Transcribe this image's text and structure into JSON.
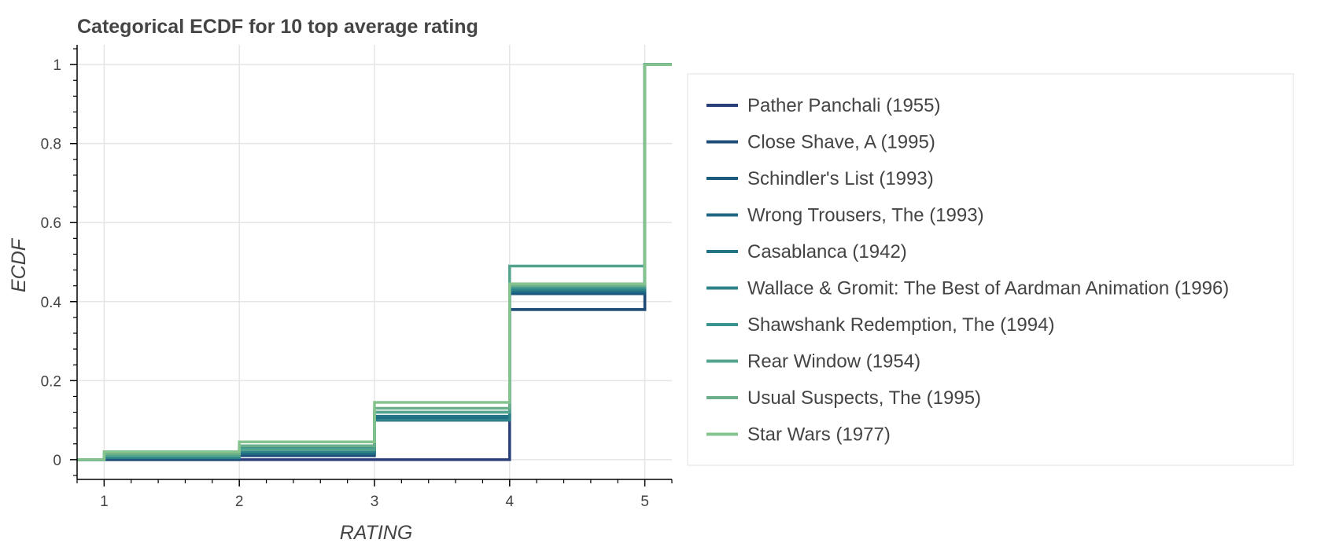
{
  "chart_data": {
    "type": "line",
    "step": "post",
    "title": "Categorical ECDF for 10 top average rating",
    "xlabel": "RATING",
    "ylabel": "ECDF",
    "xlim": [
      0.8,
      5.2
    ],
    "ylim": [
      -0.05,
      1.05
    ],
    "x_ticks": [
      1,
      2,
      3,
      4,
      5
    ],
    "y_ticks": [
      0,
      0.2,
      0.4,
      0.6,
      0.8,
      1
    ],
    "y_tick_labels": [
      "0",
      "0.2",
      "0.4",
      "0.6",
      "0.8",
      "1"
    ],
    "grid": true,
    "legend_position": "right",
    "x": [
      1,
      2,
      3,
      4,
      5
    ],
    "series": [
      {
        "name": "Pather Panchali (1955)",
        "color": "#2a3f7a",
        "values": [
          0.0,
          0.0,
          0.0,
          0.38,
          1.0
        ]
      },
      {
        "name": "Close Shave, A (1995)",
        "color": "#1f4d78",
        "values": [
          0.0,
          0.01,
          0.1,
          0.38,
          1.0
        ]
      },
      {
        "name": "Schindler's List (1993)",
        "color": "#1c5a7e",
        "values": [
          0.005,
          0.02,
          0.1,
          0.42,
          1.0
        ]
      },
      {
        "name": "Wrong Trousers, The (1993)",
        "color": "#1e6886",
        "values": [
          0.005,
          0.015,
          0.105,
          0.425,
          1.0
        ]
      },
      {
        "name": "Casablanca (1942)",
        "color": "#227484",
        "values": [
          0.01,
          0.025,
          0.11,
          0.43,
          1.0
        ]
      },
      {
        "name": "Wallace & Gromit: The Best of Aardman Animation (1996)",
        "color": "#2d8387",
        "values": [
          0.005,
          0.02,
          0.1,
          0.43,
          1.0
        ]
      },
      {
        "name": "Shawshank Redemption, The (1994)",
        "color": "#3c9490",
        "values": [
          0.01,
          0.03,
          0.12,
          0.435,
          1.0
        ]
      },
      {
        "name": "Rear Window (1954)",
        "color": "#52a48e",
        "values": [
          0.01,
          0.025,
          0.12,
          0.49,
          1.0
        ]
      },
      {
        "name": "Usual Suspects, The (1995)",
        "color": "#6aaf8a",
        "values": [
          0.015,
          0.035,
          0.13,
          0.44,
          1.0
        ]
      },
      {
        "name": "Star Wars (1977)",
        "color": "#86c48f",
        "values": [
          0.02,
          0.045,
          0.145,
          0.445,
          1.0
        ]
      }
    ]
  }
}
